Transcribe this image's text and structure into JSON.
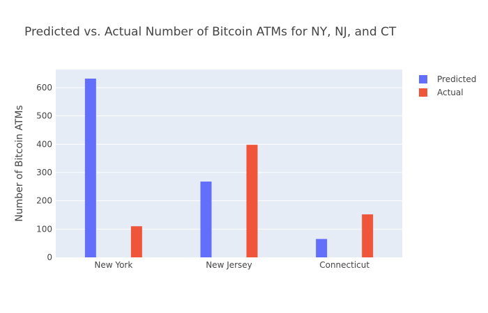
{
  "chart_data": {
    "type": "bar",
    "title": "Predicted vs. Actual Number of Bitcoin ATMs for NY, NJ, and CT",
    "xlabel": "",
    "ylabel": "Number of Bitcoin ATMs",
    "categories": [
      "New York",
      "New Jersey",
      "Connecticut"
    ],
    "series": [
      {
        "name": "Predicted",
        "values": [
          632,
          268,
          65
        ],
        "color": "#636efa"
      },
      {
        "name": "Actual",
        "values": [
          110,
          398,
          152
        ],
        "color": "#ef553b"
      }
    ],
    "ylim": [
      0,
      664
    ],
    "yticks": [
      0,
      100,
      200,
      300,
      400,
      500,
      600
    ],
    "grid": true,
    "legend_position": "top-right",
    "plot_background": "#e5ecf6"
  }
}
